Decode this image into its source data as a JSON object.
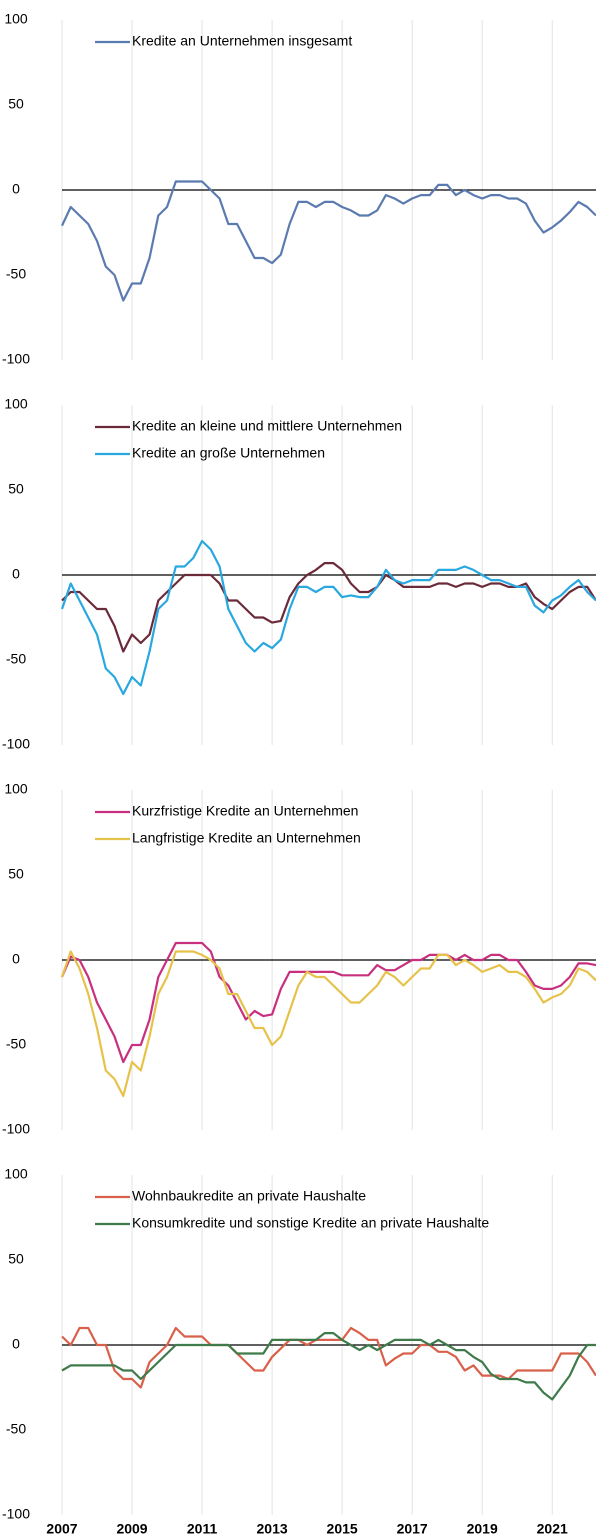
{
  "chart_data": [
    {
      "type": "line",
      "x": [
        2007,
        2007.25,
        2007.5,
        2007.75,
        2008,
        2008.25,
        2008.5,
        2008.75,
        2009,
        2009.25,
        2009.5,
        2009.75,
        2010,
        2010.25,
        2010.5,
        2010.75,
        2011,
        2011.25,
        2011.5,
        2011.75,
        2012,
        2012.25,
        2012.5,
        2012.75,
        2013,
        2013.25,
        2013.5,
        2013.75,
        2014,
        2014.25,
        2014.5,
        2014.75,
        2015,
        2015.25,
        2015.5,
        2015.75,
        2016,
        2016.25,
        2016.5,
        2016.75,
        2017,
        2017.25,
        2017.5,
        2017.75,
        2018,
        2018.25,
        2018.5,
        2018.75,
        2019,
        2019.25,
        2019.5,
        2019.75,
        2020,
        2020.25,
        2020.5,
        2020.75,
        2021,
        2021.25,
        2021.5,
        2021.75,
        2022,
        2022.25
      ],
      "xlim": [
        2007,
        2022.25
      ],
      "ylim": [
        -100,
        100
      ],
      "yticks": [
        -100,
        -50,
        0,
        50,
        100
      ],
      "grid": true,
      "series": [
        {
          "name": "Kredite an Unternehmen insgesamt",
          "color": "#5b7bb0",
          "values": [
            -21,
            -10,
            -15,
            -20,
            -30,
            -45,
            -50,
            -65,
            -55,
            -55,
            -40,
            -15,
            -10,
            5,
            5,
            5,
            5,
            0,
            -5,
            -20,
            -20,
            -30,
            -40,
            -40,
            -43,
            -38,
            -20,
            -7,
            -7,
            -10,
            -7,
            -7,
            -10,
            -12,
            -15,
            -15,
            -12,
            -3,
            -5,
            -8,
            -5,
            -3,
            -3,
            3,
            3,
            -3,
            0,
            -3,
            -5,
            -3,
            -3,
            -5,
            -5,
            -8,
            -18,
            -25,
            -22,
            -18,
            -13,
            -7,
            -10,
            -15
          ]
        }
      ]
    },
    {
      "type": "line",
      "x": [
        2007,
        2007.25,
        2007.5,
        2007.75,
        2008,
        2008.25,
        2008.5,
        2008.75,
        2009,
        2009.25,
        2009.5,
        2009.75,
        2010,
        2010.25,
        2010.5,
        2010.75,
        2011,
        2011.25,
        2011.5,
        2011.75,
        2012,
        2012.25,
        2012.5,
        2012.75,
        2013,
        2013.25,
        2013.5,
        2013.75,
        2014,
        2014.25,
        2014.5,
        2014.75,
        2015,
        2015.25,
        2015.5,
        2015.75,
        2016,
        2016.25,
        2016.5,
        2016.75,
        2017,
        2017.25,
        2017.5,
        2017.75,
        2018,
        2018.25,
        2018.5,
        2018.75,
        2019,
        2019.25,
        2019.5,
        2019.75,
        2020,
        2020.25,
        2020.5,
        2020.75,
        2021,
        2021.25,
        2021.5,
        2021.75,
        2022,
        2022.25
      ],
      "xlim": [
        2007,
        2022.25
      ],
      "ylim": [
        -100,
        100
      ],
      "yticks": [
        -100,
        -50,
        0,
        50,
        100
      ],
      "grid": true,
      "series": [
        {
          "name": "Kredite an kleine und mittlere Unternehmen",
          "color": "#6b2a3a",
          "values": [
            -15,
            -10,
            -10,
            -15,
            -20,
            -20,
            -30,
            -45,
            -35,
            -40,
            -35,
            -15,
            -10,
            -5,
            0,
            0,
            0,
            0,
            -5,
            -15,
            -15,
            -20,
            -25,
            -25,
            -28,
            -27,
            -13,
            -5,
            0,
            3,
            7,
            7,
            3,
            -5,
            -10,
            -10,
            -7,
            0,
            -3,
            -7,
            -7,
            -7,
            -7,
            -5,
            -5,
            -7,
            -5,
            -5,
            -7,
            -5,
            -5,
            -7,
            -7,
            -5,
            -13,
            -17,
            -20,
            -15,
            -10,
            -7,
            -7,
            -15
          ]
        },
        {
          "name": "Kredite an große Unternehmen",
          "color": "#29a8e0",
          "values": [
            -20,
            -5,
            -15,
            -25,
            -35,
            -55,
            -60,
            -70,
            -60,
            -65,
            -45,
            -20,
            -15,
            5,
            5,
            10,
            20,
            15,
            5,
            -20,
            -30,
            -40,
            -45,
            -40,
            -43,
            -38,
            -20,
            -7,
            -7,
            -10,
            -7,
            -7,
            -13,
            -12,
            -13,
            -13,
            -7,
            3,
            -3,
            -5,
            -3,
            -3,
            -3,
            3,
            3,
            3,
            5,
            3,
            0,
            -3,
            -3,
            -5,
            -7,
            -7,
            -18,
            -22,
            -15,
            -12,
            -7,
            -3,
            -10,
            -15
          ]
        }
      ]
    },
    {
      "type": "line",
      "x": [
        2007,
        2007.25,
        2007.5,
        2007.75,
        2008,
        2008.25,
        2008.5,
        2008.75,
        2009,
        2009.25,
        2009.5,
        2009.75,
        2010,
        2010.25,
        2010.5,
        2010.75,
        2011,
        2011.25,
        2011.5,
        2011.75,
        2012,
        2012.25,
        2012.5,
        2012.75,
        2013,
        2013.25,
        2013.5,
        2013.75,
        2014,
        2014.25,
        2014.5,
        2014.75,
        2015,
        2015.25,
        2015.5,
        2015.75,
        2016,
        2016.25,
        2016.5,
        2016.75,
        2017,
        2017.25,
        2017.5,
        2017.75,
        2018,
        2018.25,
        2018.5,
        2018.75,
        2019,
        2019.25,
        2019.5,
        2019.75,
        2020,
        2020.25,
        2020.5,
        2020.75,
        2021,
        2021.25,
        2021.5,
        2021.75,
        2022,
        2022.25
      ],
      "xlim": [
        2007,
        2022.25
      ],
      "ylim": [
        -100,
        100
      ],
      "yticks": [
        -100,
        -50,
        0,
        50,
        100
      ],
      "grid": true,
      "series": [
        {
          "name": "Kurzfristige Kredite an Unternehmen",
          "color": "#c8307f",
          "values": [
            -10,
            2,
            0,
            -10,
            -25,
            -35,
            -45,
            -60,
            -50,
            -50,
            -35,
            -10,
            0,
            10,
            10,
            10,
            10,
            5,
            -10,
            -15,
            -25,
            -35,
            -30,
            -33,
            -32,
            -17,
            -7,
            -7,
            -7,
            -7,
            -7,
            -7,
            -9,
            -9,
            -9,
            -9,
            -3,
            -6,
            -6,
            -3,
            0,
            0,
            3,
            3,
            3,
            0,
            3,
            0,
            0,
            3,
            3,
            0,
            0,
            -7,
            -15,
            -17,
            -17,
            -15,
            -10,
            -2,
            -2,
            -3
          ]
        },
        {
          "name": "Langfristige Kredite an Unternehmen",
          "color": "#e6c24a",
          "values": [
            -10,
            5,
            -5,
            -20,
            -40,
            -65,
            -70,
            -80,
            -60,
            -65,
            -45,
            -20,
            -10,
            5,
            5,
            5,
            3,
            0,
            -5,
            -20,
            -20,
            -30,
            -40,
            -40,
            -50,
            -45,
            -30,
            -15,
            -7,
            -10,
            -10,
            -15,
            -20,
            -25,
            -25,
            -20,
            -15,
            -7,
            -10,
            -15,
            -10,
            -5,
            -5,
            3,
            3,
            -3,
            0,
            -3,
            -7,
            -5,
            -3,
            -7,
            -7,
            -10,
            -17,
            -25,
            -22,
            -20,
            -15,
            -5,
            -7,
            -12
          ]
        }
      ]
    },
    {
      "type": "line",
      "x": [
        2007,
        2007.25,
        2007.5,
        2007.75,
        2008,
        2008.25,
        2008.5,
        2008.75,
        2009,
        2009.25,
        2009.5,
        2009.75,
        2010,
        2010.25,
        2010.5,
        2010.75,
        2011,
        2011.25,
        2011.5,
        2011.75,
        2012,
        2012.25,
        2012.5,
        2012.75,
        2013,
        2013.25,
        2013.5,
        2013.75,
        2014,
        2014.25,
        2014.5,
        2014.75,
        2015,
        2015.25,
        2015.5,
        2015.75,
        2016,
        2016.25,
        2016.5,
        2016.75,
        2017,
        2017.25,
        2017.5,
        2017.75,
        2018,
        2018.25,
        2018.5,
        2018.75,
        2019,
        2019.25,
        2019.5,
        2019.75,
        2020,
        2020.25,
        2020.5,
        2020.75,
        2021,
        2021.25,
        2021.5,
        2021.75,
        2022,
        2022.25
      ],
      "xlim": [
        2007,
        2022.25
      ],
      "xticks": [
        2007,
        2009,
        2011,
        2013,
        2015,
        2017,
        2019,
        2021
      ],
      "ylim": [
        -100,
        100
      ],
      "yticks": [
        -100,
        -50,
        0,
        50,
        100
      ],
      "grid": true,
      "series": [
        {
          "name": "Wohnbaukredite an private Haushalte",
          "color": "#d9604a",
          "values": [
            5,
            0,
            10,
            10,
            0,
            0,
            -15,
            -20,
            -20,
            -25,
            -10,
            -5,
            0,
            10,
            5,
            5,
            5,
            0,
            0,
            0,
            -5,
            -10,
            -15,
            -15,
            -7,
            -2,
            3,
            3,
            0,
            3,
            3,
            3,
            3,
            10,
            7,
            3,
            3,
            -12,
            -8,
            -5,
            -5,
            0,
            0,
            -4,
            -4,
            -7,
            -15,
            -12,
            -18,
            -18,
            -18,
            -20,
            -15,
            -15,
            -15,
            -15,
            -15,
            -5,
            -5,
            -5,
            -10,
            -18
          ]
        },
        {
          "name": "Konsumkredite und sonstige Kredite an private Haushalte",
          "color": "#3f7a4a",
          "values": [
            -15,
            -12,
            -12,
            -12,
            -12,
            -12,
            -12,
            -15,
            -15,
            -20,
            -15,
            -10,
            -5,
            0,
            0,
            0,
            0,
            0,
            0,
            0,
            -5,
            -5,
            -5,
            -5,
            3,
            3,
            3,
            3,
            3,
            3,
            7,
            7,
            3,
            0,
            -3,
            0,
            -3,
            0,
            3,
            3,
            3,
            3,
            0,
            3,
            0,
            -3,
            -3,
            -7,
            -10,
            -17,
            -20,
            -20,
            -20,
            -22,
            -22,
            -28,
            -32,
            -25,
            -18,
            -7,
            0,
            0
          ]
        }
      ]
    }
  ]
}
